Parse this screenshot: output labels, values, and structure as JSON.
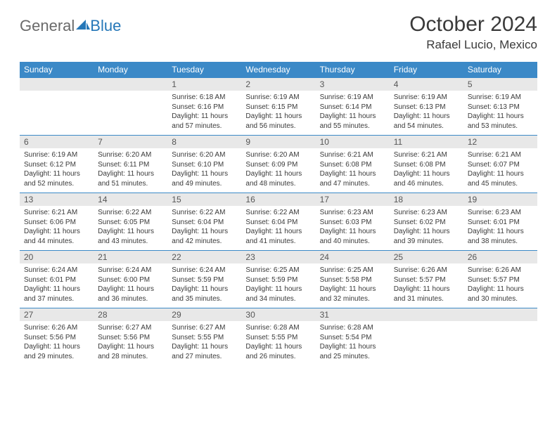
{
  "brand": {
    "part1": "General",
    "part2": "Blue"
  },
  "title": "October 2024",
  "location": "Rafael Lucio, Mexico",
  "theme": {
    "header_bg": "#3b89c7",
    "daynum_bg": "#e8e8e8",
    "border": "#3b89c7"
  },
  "day_labels": [
    "Sunday",
    "Monday",
    "Tuesday",
    "Wednesday",
    "Thursday",
    "Friday",
    "Saturday"
  ],
  "weeks": [
    [
      null,
      null,
      {
        "n": "1",
        "sr": "6:18 AM",
        "ss": "6:16 PM",
        "dl": "11 hours and 57 minutes."
      },
      {
        "n": "2",
        "sr": "6:19 AM",
        "ss": "6:15 PM",
        "dl": "11 hours and 56 minutes."
      },
      {
        "n": "3",
        "sr": "6:19 AM",
        "ss": "6:14 PM",
        "dl": "11 hours and 55 minutes."
      },
      {
        "n": "4",
        "sr": "6:19 AM",
        "ss": "6:13 PM",
        "dl": "11 hours and 54 minutes."
      },
      {
        "n": "5",
        "sr": "6:19 AM",
        "ss": "6:13 PM",
        "dl": "11 hours and 53 minutes."
      }
    ],
    [
      {
        "n": "6",
        "sr": "6:19 AM",
        "ss": "6:12 PM",
        "dl": "11 hours and 52 minutes."
      },
      {
        "n": "7",
        "sr": "6:20 AM",
        "ss": "6:11 PM",
        "dl": "11 hours and 51 minutes."
      },
      {
        "n": "8",
        "sr": "6:20 AM",
        "ss": "6:10 PM",
        "dl": "11 hours and 49 minutes."
      },
      {
        "n": "9",
        "sr": "6:20 AM",
        "ss": "6:09 PM",
        "dl": "11 hours and 48 minutes."
      },
      {
        "n": "10",
        "sr": "6:21 AM",
        "ss": "6:08 PM",
        "dl": "11 hours and 47 minutes."
      },
      {
        "n": "11",
        "sr": "6:21 AM",
        "ss": "6:08 PM",
        "dl": "11 hours and 46 minutes."
      },
      {
        "n": "12",
        "sr": "6:21 AM",
        "ss": "6:07 PM",
        "dl": "11 hours and 45 minutes."
      }
    ],
    [
      {
        "n": "13",
        "sr": "6:21 AM",
        "ss": "6:06 PM",
        "dl": "11 hours and 44 minutes."
      },
      {
        "n": "14",
        "sr": "6:22 AM",
        "ss": "6:05 PM",
        "dl": "11 hours and 43 minutes."
      },
      {
        "n": "15",
        "sr": "6:22 AM",
        "ss": "6:04 PM",
        "dl": "11 hours and 42 minutes."
      },
      {
        "n": "16",
        "sr": "6:22 AM",
        "ss": "6:04 PM",
        "dl": "11 hours and 41 minutes."
      },
      {
        "n": "17",
        "sr": "6:23 AM",
        "ss": "6:03 PM",
        "dl": "11 hours and 40 minutes."
      },
      {
        "n": "18",
        "sr": "6:23 AM",
        "ss": "6:02 PM",
        "dl": "11 hours and 39 minutes."
      },
      {
        "n": "19",
        "sr": "6:23 AM",
        "ss": "6:01 PM",
        "dl": "11 hours and 38 minutes."
      }
    ],
    [
      {
        "n": "20",
        "sr": "6:24 AM",
        "ss": "6:01 PM",
        "dl": "11 hours and 37 minutes."
      },
      {
        "n": "21",
        "sr": "6:24 AM",
        "ss": "6:00 PM",
        "dl": "11 hours and 36 minutes."
      },
      {
        "n": "22",
        "sr": "6:24 AM",
        "ss": "5:59 PM",
        "dl": "11 hours and 35 minutes."
      },
      {
        "n": "23",
        "sr": "6:25 AM",
        "ss": "5:59 PM",
        "dl": "11 hours and 34 minutes."
      },
      {
        "n": "24",
        "sr": "6:25 AM",
        "ss": "5:58 PM",
        "dl": "11 hours and 32 minutes."
      },
      {
        "n": "25",
        "sr": "6:26 AM",
        "ss": "5:57 PM",
        "dl": "11 hours and 31 minutes."
      },
      {
        "n": "26",
        "sr": "6:26 AM",
        "ss": "5:57 PM",
        "dl": "11 hours and 30 minutes."
      }
    ],
    [
      {
        "n": "27",
        "sr": "6:26 AM",
        "ss": "5:56 PM",
        "dl": "11 hours and 29 minutes."
      },
      {
        "n": "28",
        "sr": "6:27 AM",
        "ss": "5:56 PM",
        "dl": "11 hours and 28 minutes."
      },
      {
        "n": "29",
        "sr": "6:27 AM",
        "ss": "5:55 PM",
        "dl": "11 hours and 27 minutes."
      },
      {
        "n": "30",
        "sr": "6:28 AM",
        "ss": "5:55 PM",
        "dl": "11 hours and 26 minutes."
      },
      {
        "n": "31",
        "sr": "6:28 AM",
        "ss": "5:54 PM",
        "dl": "11 hours and 25 minutes."
      },
      null,
      null
    ]
  ],
  "labels": {
    "sunrise": "Sunrise: ",
    "sunset": "Sunset: ",
    "daylight": "Daylight: "
  }
}
